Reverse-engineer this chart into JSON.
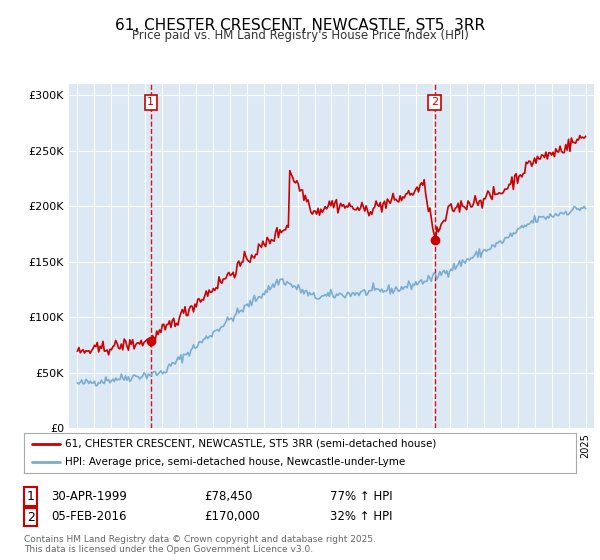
{
  "title": "61, CHESTER CRESCENT, NEWCASTLE, ST5  3RR",
  "subtitle": "Price paid vs. HM Land Registry's House Price Index (HPI)",
  "background_color": "#dce9f5",
  "fig_bg_color": "#ffffff",
  "red_line_color": "#cc0000",
  "blue_line_color": "#7aadcf",
  "marker1_date_x": 1999.33,
  "marker1_y": 78450,
  "marker2_date_x": 2016.09,
  "marker2_y": 170000,
  "vline1_x": 1999.33,
  "vline2_x": 2016.09,
  "ylim": [
    0,
    310000
  ],
  "xlim": [
    1994.5,
    2025.5
  ],
  "legend_label_red": "61, CHESTER CRESCENT, NEWCASTLE, ST5 3RR (semi-detached house)",
  "legend_label_blue": "HPI: Average price, semi-detached house, Newcastle-under-Lyme",
  "annotation1_num": "1",
  "annotation1_date": "30-APR-1999",
  "annotation1_price": "£78,450",
  "annotation1_hpi": "77% ↑ HPI",
  "annotation2_num": "2",
  "annotation2_date": "05-FEB-2016",
  "annotation2_price": "£170,000",
  "annotation2_hpi": "32% ↑ HPI",
  "footer": "Contains HM Land Registry data © Crown copyright and database right 2025.\nThis data is licensed under the Open Government Licence v3.0.",
  "yticks": [
    0,
    50000,
    100000,
    150000,
    200000,
    250000,
    300000
  ],
  "ytick_labels": [
    "£0",
    "£50K",
    "£100K",
    "£150K",
    "£200K",
    "£250K",
    "£300K"
  ]
}
